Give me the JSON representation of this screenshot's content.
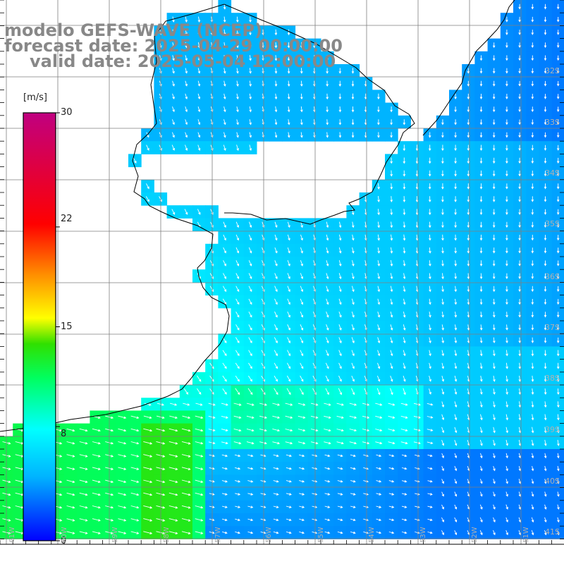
{
  "title": {
    "line1": "modelo GEFS-WAVE (NCEP)",
    "line2": "forecast date: 2025-04-29 00:00:00",
    "line3": "valid date: 2025-05-04 12:00:00"
  },
  "colorbar": {
    "units": "[m/s]",
    "ticks": [
      "30",
      "22",
      "15",
      "8",
      "0"
    ],
    "tick_values": [
      30,
      22,
      15,
      8,
      0
    ],
    "vmin": 0,
    "vmax": 30,
    "colors": [
      "#0000ff",
      "#00c8ff",
      "#00ffff",
      "#00ff00",
      "#ffff00",
      "#ff7f00",
      "#ff0000",
      "#c80078"
    ]
  },
  "lat_labels": [
    "32S",
    "33S",
    "34S",
    "35S",
    "36S",
    "37S",
    "38S",
    "39S",
    "40S",
    "41S"
  ],
  "lon_labels": [
    "61W",
    "60W",
    "59W",
    "58W",
    "57W",
    "56W",
    "55W",
    "54W",
    "53W",
    "52W",
    "51W"
  ],
  "field": {
    "variable": "wind speed",
    "units": "m/s",
    "description_regions": [
      {
        "area": "coastal strip south-west",
        "speed_range": [
          10,
          14
        ]
      },
      {
        "area": "central shelf",
        "speed_range": [
          9,
          12
        ]
      },
      {
        "area": "open ocean north-east",
        "speed_range": [
          4,
          7
        ]
      },
      {
        "area": "south-east",
        "speed_range": [
          3,
          6
        ]
      }
    ],
    "wind_direction": "from north-west in the south, from north in the north-east"
  },
  "colors": {
    "title": "#888888",
    "coastline": "#000000",
    "grid": "#7f7f7f",
    "arrows": "#ffffff"
  }
}
